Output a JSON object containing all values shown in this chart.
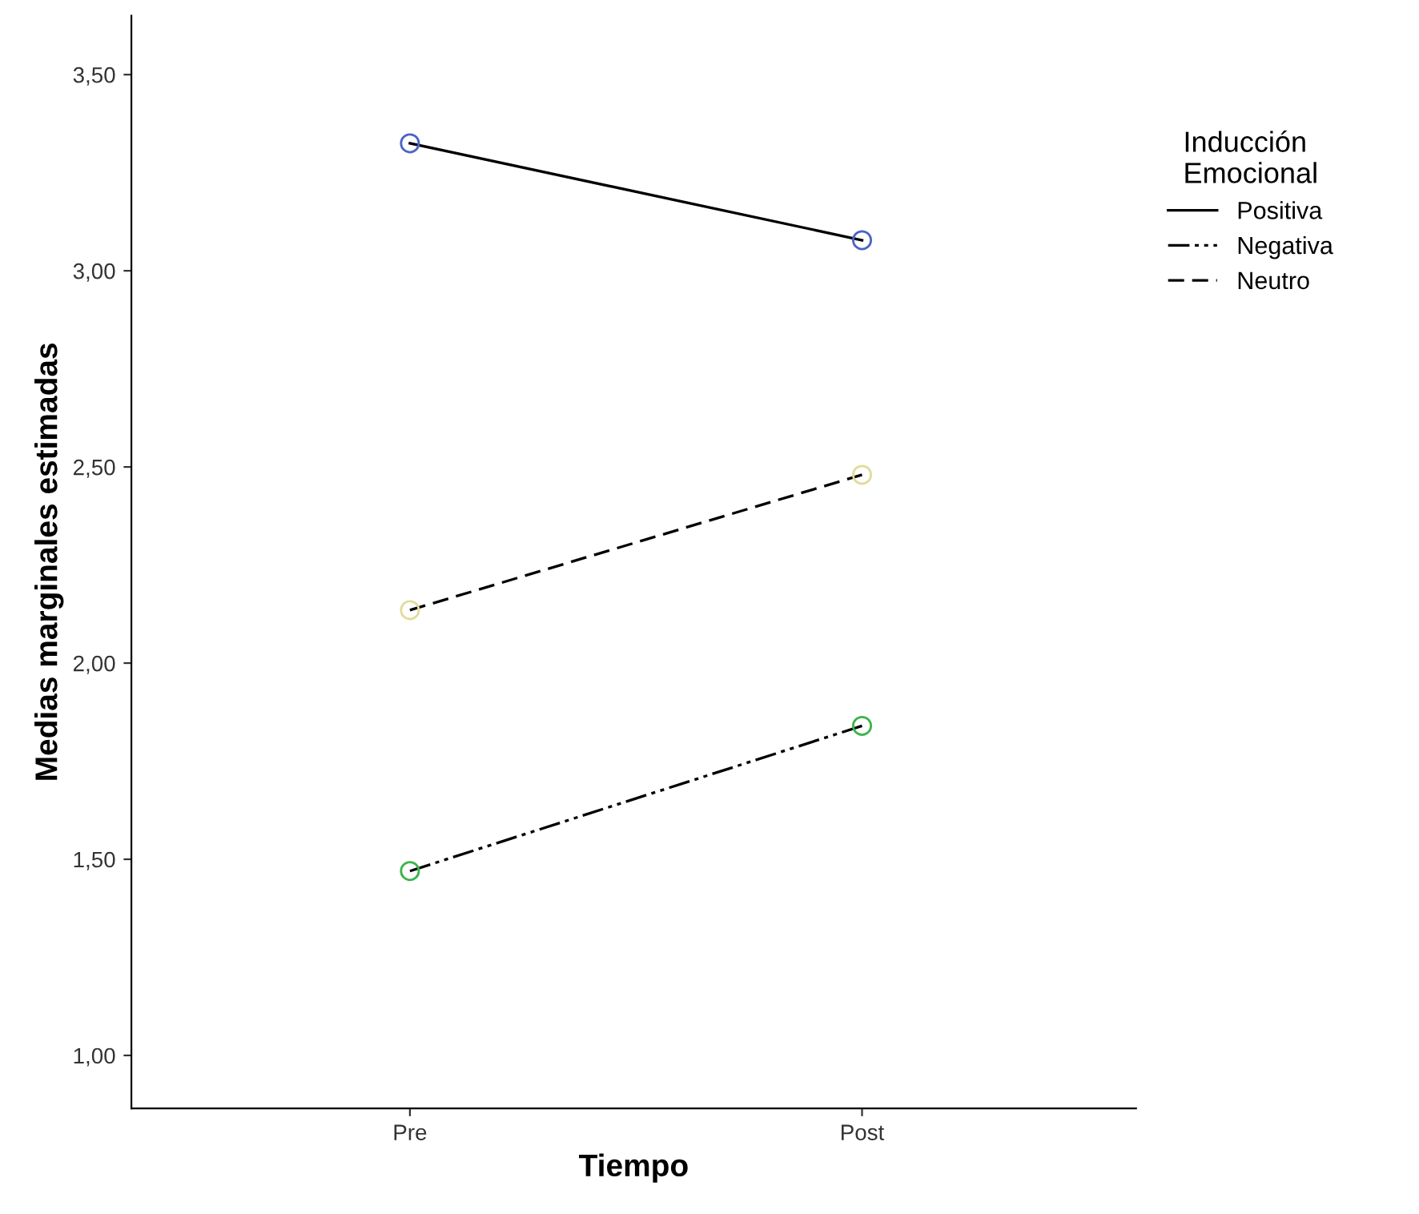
{
  "chart_data": {
    "type": "line",
    "xlabel": "Tiempo",
    "ylabel": "Medias marginales estimadas",
    "legend_title": "Inducción\nEmocional",
    "categories": [
      "Pre",
      "Post"
    ],
    "series": [
      {
        "name": "Positiva",
        "color": "#000000",
        "colors": [
          "#4a63c8",
          "#4a63c8"
        ],
        "line_style": "solid",
        "values": [
          3.325,
          3.078
        ]
      },
      {
        "name": "Negativa",
        "color": "#000000",
        "colors": [
          "#3cb44a",
          "#3cb44a"
        ],
        "line_style": "dotted",
        "values": [
          1.47,
          1.84
        ]
      },
      {
        "name": "Neutro",
        "color": "#000000",
        "colors": [
          "#e0dc9a",
          "#e0dc9a"
        ],
        "line_style": "dashed",
        "values": [
          2.135,
          2.48
        ]
      }
    ],
    "marker": "circle",
    "legend": "right",
    "grid": false,
    "ylim": [
      0.865,
      3.65
    ],
    "yticks": [
      {
        "value": 1.0,
        "label": "1,00"
      },
      {
        "value": 1.5,
        "label": "1,50"
      },
      {
        "value": 2.0,
        "label": "2,00"
      },
      {
        "value": 2.5,
        "label": "2,50"
      },
      {
        "value": 3.0,
        "label": "3,00"
      },
      {
        "value": 3.5,
        "label": "3,50"
      }
    ]
  }
}
